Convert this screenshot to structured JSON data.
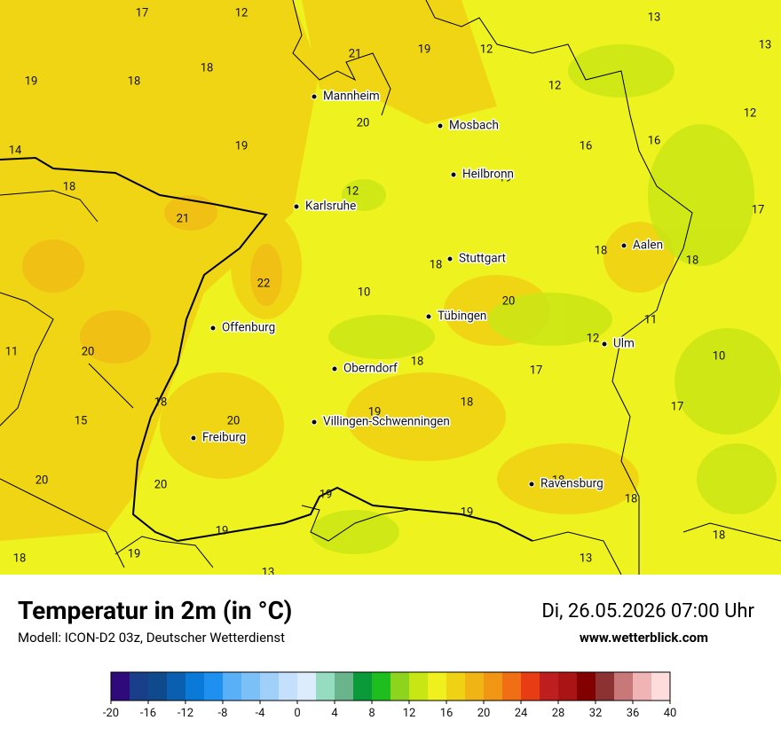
{
  "title": "Temperatur in 2m (in °C)",
  "subtitle": "Modell: ICON-D2 03z, Deutscher Wetterdienst",
  "date": "Di, 26.05.2026 07:00 Uhr",
  "website": "www.wetterblick.com",
  "map": {
    "cities": [
      "Mannheim",
      "Mosbach",
      "Heilbronn",
      "Karlsruhe",
      "Aalen",
      "Stuttgart",
      "Tübingen",
      "Offenburg",
      "Ulm",
      "Oberndorf",
      "Villingen-Schwenningen",
      "Freiburg",
      "Ravensburg"
    ],
    "temperature_labels": [
      17,
      12,
      13,
      13,
      21,
      19,
      12,
      19,
      18,
      18,
      12,
      12,
      20,
      16,
      16,
      14,
      19,
      18,
      12,
      19,
      17,
      21,
      18,
      18,
      18,
      22,
      10,
      20,
      11,
      12,
      10,
      11,
      20,
      18,
      17,
      18,
      18,
      17,
      15,
      20,
      19,
      20,
      20,
      19,
      18,
      18,
      19,
      19,
      18,
      19,
      18,
      13,
      13
    ]
  },
  "colorbar": {
    "range": [
      -20,
      40
    ],
    "colors": [
      "#2e0a7a",
      "#1a3f8a",
      "#0f4a8c",
      "#0a5fb0",
      "#0a7ad8",
      "#1e90f0",
      "#5ab0f7",
      "#7cc0f8",
      "#a0d0fa",
      "#c4e0fc",
      "#dcecfc",
      "#96dcc0",
      "#6ab48c",
      "#0a9a3a",
      "#1ebe1e",
      "#8cd41e",
      "#c8e614",
      "#f0f01e",
      "#f0d214",
      "#f0b414",
      "#f09614",
      "#f06e14",
      "#e83c14",
      "#be1e1e",
      "#aa1414",
      "#820000",
      "#8c3232",
      "#c87878",
      "#f0b4b4",
      "#ffdcdc"
    ],
    "ticks": [
      -20,
      -16,
      -12,
      -8,
      -4,
      0,
      4,
      8,
      12,
      16,
      20,
      24,
      28,
      32,
      36,
      40
    ]
  }
}
